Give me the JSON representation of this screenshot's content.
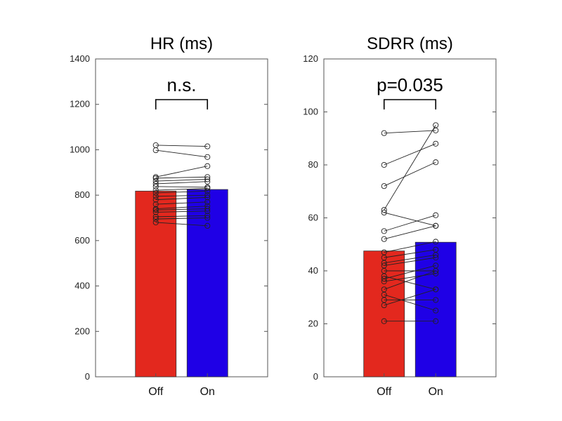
{
  "chart_data": [
    {
      "type": "bar",
      "title": "HR (ms)",
      "categories": [
        "Off",
        "On"
      ],
      "values": [
        818,
        825
      ],
      "bar_colors": [
        "#e3281e",
        "#1f00e6"
      ],
      "ylim": [
        0,
        1400
      ],
      "yticks": [
        "0",
        "200",
        "400",
        "600",
        "800",
        "1000",
        "1200",
        "1400"
      ],
      "annotation": "n.s.",
      "paired_points": [
        [
          1020,
          1015
        ],
        [
          998,
          968
        ],
        [
          880,
          928
        ],
        [
          875,
          880
        ],
        [
          862,
          870
        ],
        [
          850,
          860
        ],
        [
          838,
          835
        ],
        [
          822,
          830
        ],
        [
          810,
          818
        ],
        [
          795,
          800
        ],
        [
          780,
          790
        ],
        [
          760,
          770
        ],
        [
          740,
          752
        ],
        [
          735,
          740
        ],
        [
          725,
          730
        ],
        [
          705,
          710
        ],
        [
          695,
          700
        ],
        [
          680,
          665
        ]
      ]
    },
    {
      "type": "bar",
      "title": "SDRR (ms)",
      "categories": [
        "Off",
        "On"
      ],
      "values": [
        47.5,
        50.8
      ],
      "bar_colors": [
        "#e3281e",
        "#1f00e6"
      ],
      "ylim": [
        0,
        120
      ],
      "yticks": [
        "0",
        "20",
        "40",
        "60",
        "80",
        "100",
        "120"
      ],
      "annotation": "p=0.035",
      "paired_points": [
        [
          92,
          93
        ],
        [
          80,
          88
        ],
        [
          72,
          81
        ],
        [
          63,
          95
        ],
        [
          62,
          57
        ],
        [
          55,
          61
        ],
        [
          52,
          57
        ],
        [
          47,
          51
        ],
        [
          45,
          48
        ],
        [
          43,
          46
        ],
        [
          42,
          45
        ],
        [
          40,
          40
        ],
        [
          38,
          33
        ],
        [
          37,
          42
        ],
        [
          36,
          39
        ],
        [
          33,
          40
        ],
        [
          31,
          25
        ],
        [
          29,
          29
        ],
        [
          27,
          33
        ],
        [
          21,
          21
        ]
      ]
    }
  ]
}
